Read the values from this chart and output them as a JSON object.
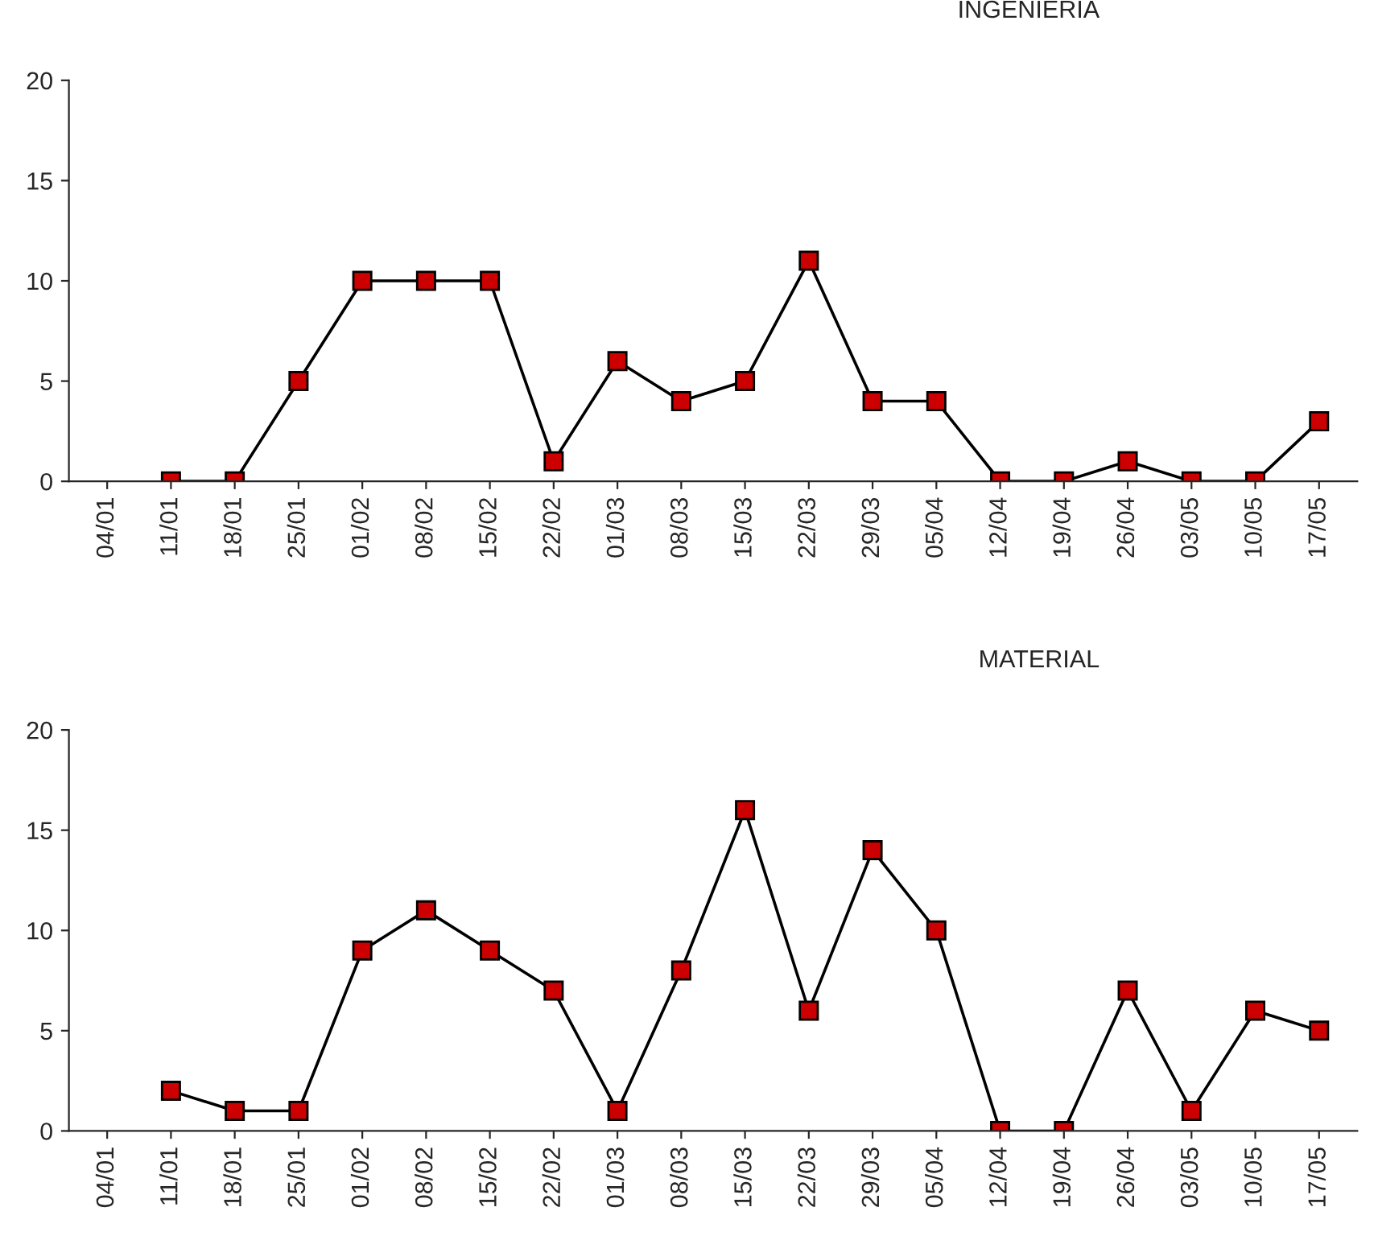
{
  "chart_data": [
    {
      "type": "line",
      "title": "INGENIERIA",
      "categories": [
        "04/01",
        "11/01",
        "18/01",
        "25/01",
        "01/02",
        "08/02",
        "15/02",
        "22/02",
        "01/03",
        "08/03",
        "15/03",
        "22/03",
        "29/03",
        "05/04",
        "12/04",
        "19/04",
        "26/04",
        "03/05",
        "10/05",
        "17/05"
      ],
      "series": [
        {
          "color": "#cc0000",
          "values": [
            null,
            0,
            0,
            5,
            10,
            10,
            10,
            1,
            6,
            4,
            5,
            11,
            4,
            4,
            0,
            0,
            1,
            0,
            0,
            3
          ]
        }
      ],
      "ylim": [
        0,
        20
      ],
      "yticks": [
        0,
        5,
        10,
        15,
        20
      ],
      "grid": false,
      "legend": false,
      "marker": "square",
      "line_style": "solid"
    },
    {
      "type": "line",
      "title": "MATERIAL",
      "categories": [
        "04/01",
        "11/01",
        "18/01",
        "25/01",
        "01/02",
        "08/02",
        "15/02",
        "22/02",
        "01/03",
        "08/03",
        "15/03",
        "22/03",
        "29/03",
        "05/04",
        "12/04",
        "19/04",
        "26/04",
        "03/05",
        "10/05",
        "17/05"
      ],
      "series": [
        {
          "color": "#cc0000",
          "values": [
            null,
            2,
            1,
            1,
            9,
            11,
            9,
            7,
            1,
            8,
            16,
            6,
            14,
            10,
            0,
            0,
            7,
            1,
            6,
            5
          ]
        }
      ],
      "ylim": [
        0,
        20
      ],
      "yticks": [
        0,
        5,
        10,
        15,
        20
      ],
      "grid": false,
      "legend": false,
      "marker": "square",
      "line_style": "solid"
    }
  ]
}
